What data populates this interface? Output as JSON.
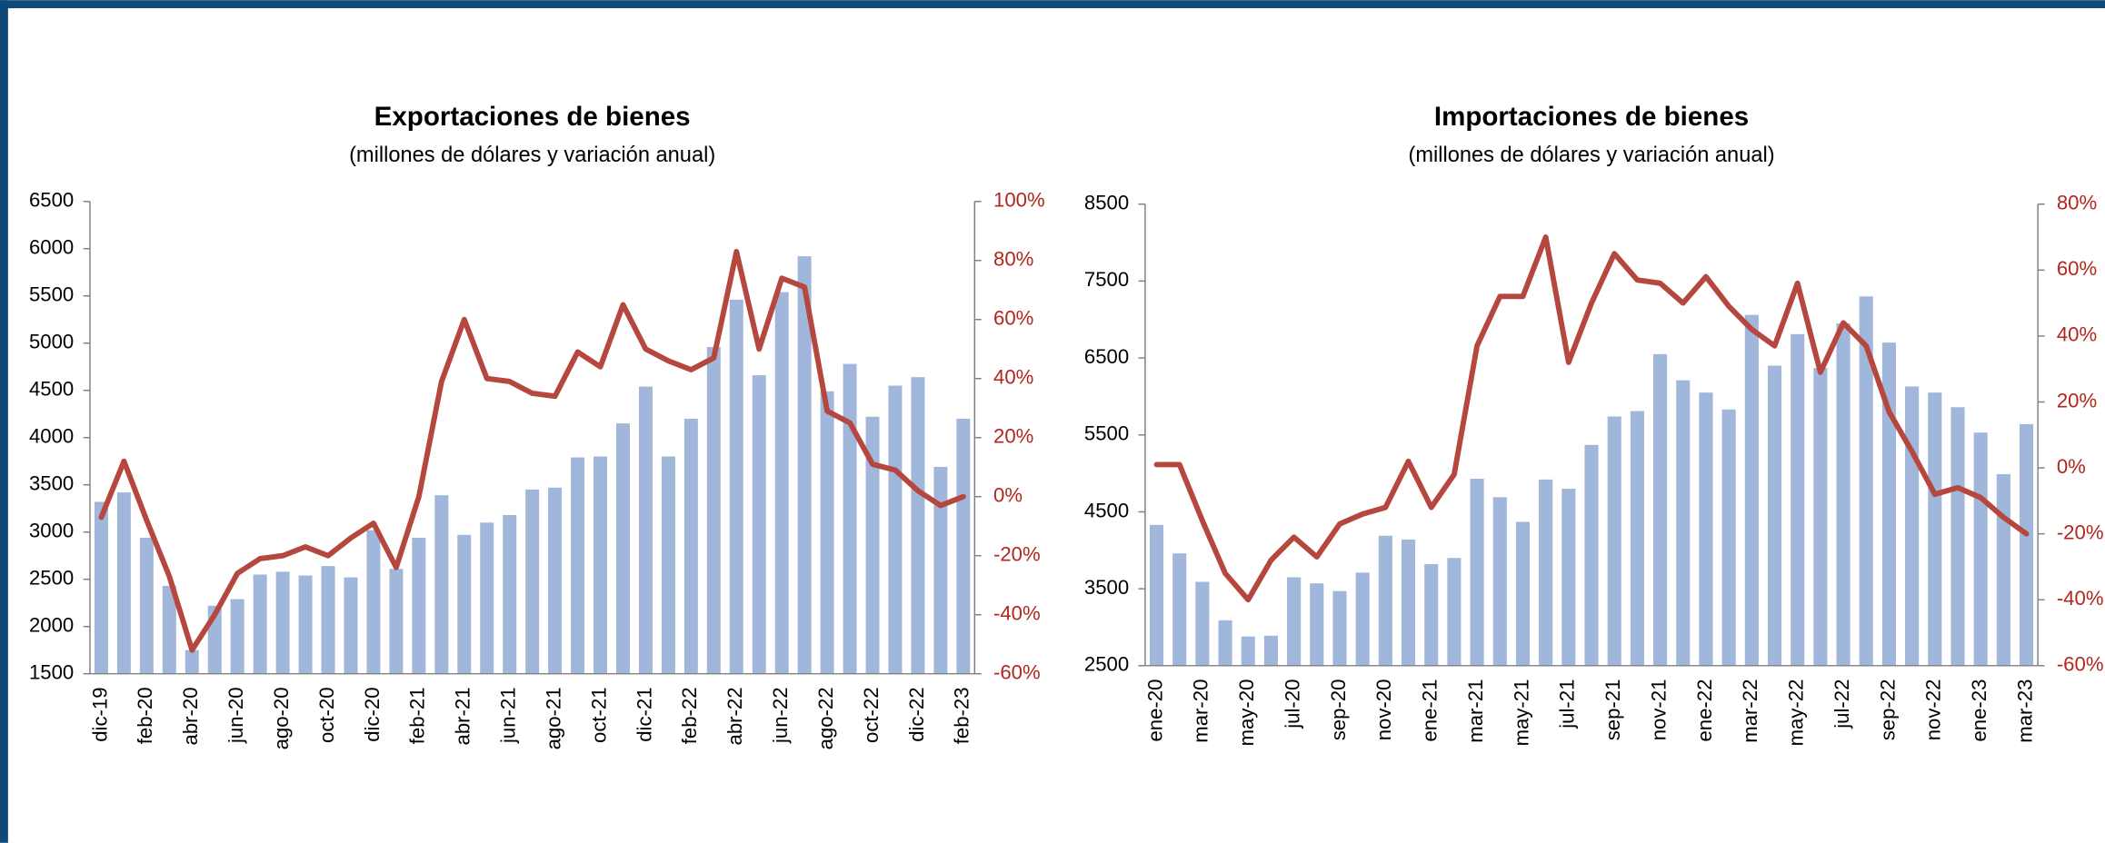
{
  "chart_data": [
    {
      "type": "bar",
      "title": "Exportaciones de bienes",
      "subtitle": "(millones de dólares y variación anual)",
      "categories": [
        "dic-19",
        null,
        "feb-20",
        null,
        "abr-20",
        null,
        "jun-20",
        null,
        "ago-20",
        null,
        "oct-20",
        null,
        "dic-20",
        null,
        "feb-21",
        null,
        "abr-21",
        null,
        "jun-21",
        null,
        "ago-21",
        null,
        "oct-21",
        null,
        "dic-21",
        null,
        "feb-22",
        null,
        "abr-22",
        null,
        "jun-22",
        null,
        "ago-22",
        null,
        "oct-22",
        null,
        "dic-22",
        null,
        "feb-23"
      ],
      "series": [
        {
          "type": "bar",
          "color": "#a0b6da",
          "values": [
            3320,
            3420,
            2940,
            2430,
            1750,
            2220,
            2290,
            2550,
            2580,
            2540,
            2640,
            2520,
            3020,
            2610,
            2940,
            3390,
            2970,
            3100,
            3180,
            3450,
            3470,
            3790,
            3800,
            4150,
            4540,
            3800,
            4200,
            4960,
            5460,
            4660,
            5540,
            5920,
            4490,
            4780,
            4220,
            4550,
            4640,
            3690,
            4200
          ]
        },
        {
          "type": "line",
          "axis": "y2",
          "color": "#b5473f",
          "values": [
            -7,
            12,
            -8,
            -27,
            -52,
            -40,
            -26,
            -21,
            -20,
            -17,
            -20,
            -14,
            -9,
            -24,
            0,
            39,
            60,
            40,
            39,
            35,
            34,
            49,
            44,
            65,
            50,
            46,
            43,
            47,
            83,
            50,
            74,
            71,
            29,
            25,
            11,
            9,
            2,
            -3,
            0
          ]
        }
      ],
      "ylim": [
        1500,
        6500
      ],
      "yticks": [
        1500,
        2000,
        2500,
        3000,
        3500,
        4000,
        4500,
        5000,
        5500,
        6000,
        6500
      ],
      "y2lim": [
        -60,
        100
      ],
      "y2ticks": [
        {
          "value": -60,
          "label": "-60%"
        },
        {
          "value": -40,
          "label": "-40%"
        },
        {
          "value": -20,
          "label": "-20%"
        },
        {
          "value": 0,
          "label": "0%"
        },
        {
          "value": 20,
          "label": "20%"
        },
        {
          "value": 40,
          "label": "40%"
        },
        {
          "value": 60,
          "label": "60%"
        },
        {
          "value": 80,
          "label": "80%"
        },
        {
          "value": 100,
          "label": "100%"
        }
      ],
      "y2color": "#b3261e",
      "grid": false
    },
    {
      "type": "bar",
      "title": "Importaciones de bienes",
      "subtitle": "(millones de dólares y variación anual)",
      "categories": [
        "ene-20",
        null,
        "mar-20",
        null,
        "may-20",
        null,
        "jul-20",
        null,
        "sep-20",
        null,
        "nov-20",
        null,
        "ene-21",
        null,
        "mar-21",
        null,
        "may-21",
        null,
        "jul-21",
        null,
        "sep-21",
        null,
        "nov-21",
        null,
        "ene-22",
        null,
        "mar-22",
        null,
        "may-22",
        null,
        "jul-22",
        null,
        "sep-22",
        null,
        "nov-22",
        null,
        "ene-23",
        null,
        "mar-23"
      ],
      "series": [
        {
          "type": "bar",
          "color": "#a0b6da",
          "values": [
            4330,
            3960,
            3590,
            3090,
            2880,
            2890,
            3650,
            3570,
            3470,
            3710,
            4190,
            4140,
            3820,
            3900,
            4930,
            4690,
            4370,
            4920,
            4800,
            5370,
            5740,
            5810,
            6550,
            6210,
            6050,
            5830,
            7060,
            6400,
            6810,
            6370,
            6950,
            7300,
            6700,
            6130,
            6050,
            5860,
            5530,
            4990,
            5640
          ]
        },
        {
          "type": "line",
          "axis": "y2",
          "color": "#b5473f",
          "values": [
            1,
            1,
            -16,
            -32,
            -40,
            -28,
            -21,
            -27,
            -17,
            -14,
            -12,
            2,
            -12,
            -2,
            37,
            52,
            52,
            70,
            32,
            50,
            65,
            57,
            56,
            50,
            58,
            49,
            42,
            37,
            56,
            29,
            44,
            37,
            17,
            5,
            -8,
            -6,
            -9,
            -15,
            -20
          ]
        }
      ],
      "ylim": [
        2500,
        8500
      ],
      "yticks": [
        2500,
        3500,
        4500,
        5500,
        6500,
        7500,
        8500
      ],
      "y2lim": [
        -60,
        80
      ],
      "y2ticks": [
        {
          "value": -60,
          "label": "-60%"
        },
        {
          "value": -40,
          "label": "-40%"
        },
        {
          "value": -20,
          "label": "-20%"
        },
        {
          "value": 0,
          "label": "0%"
        },
        {
          "value": 20,
          "label": "20%"
        },
        {
          "value": 40,
          "label": "40%"
        },
        {
          "value": 60,
          "label": "60%"
        },
        {
          "value": 80,
          "label": "80%"
        }
      ],
      "y2color": "#b3261e",
      "grid": false
    }
  ]
}
